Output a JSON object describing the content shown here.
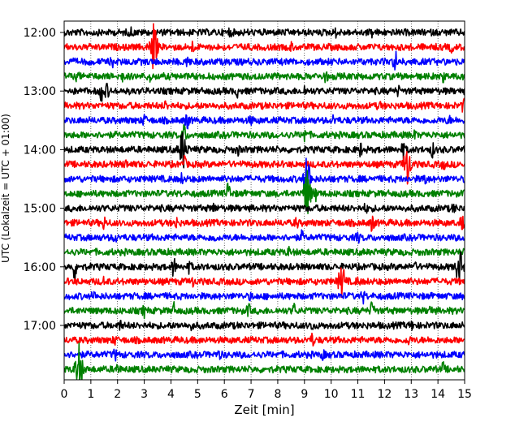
{
  "chart_data": {
    "type": "line",
    "xlabel": "Zeit  [min]",
    "ylabel": "UTC (Lokalzeit = UTC + 01:00)",
    "xlim": [
      0,
      15
    ],
    "x_ticks": [
      "0",
      "1",
      "2",
      "3",
      "4",
      "5",
      "6",
      "7",
      "8",
      "9",
      "10",
      "11",
      "12",
      "13",
      "14",
      "15"
    ],
    "y_ticks": [
      "12:00",
      "13:00",
      "14:00",
      "15:00",
      "16:00",
      "17:00"
    ],
    "grid": "vertical dotted at each minute",
    "trace_colors": [
      "#000000",
      "#ff0000",
      "#0000ff",
      "#008000"
    ],
    "traces": [
      {
        "time": "12:00",
        "color": "#000000",
        "events": [
          [
            2.5,
            0.4
          ],
          [
            6.2,
            0.4
          ],
          [
            10.2,
            0.4
          ],
          [
            11.5,
            0.35
          ]
        ]
      },
      {
        "time": "12:15",
        "color": "#ff0000",
        "events": [
          [
            3.35,
            2.6
          ],
          [
            4.8,
            0.5
          ],
          [
            8.5,
            0.35
          ],
          [
            14.5,
            0.4
          ]
        ]
      },
      {
        "time": "12:30",
        "color": "#0000ff",
        "events": [
          [
            1.8,
            0.4
          ],
          [
            4.6,
            0.5
          ],
          [
            12.4,
            1.3
          ],
          [
            13.0,
            0.35
          ]
        ]
      },
      {
        "time": "12:45",
        "color": "#008000",
        "events": [
          [
            0.5,
            0.4
          ],
          [
            2.2,
            0.4
          ],
          [
            3.2,
            0.5
          ],
          [
            9.8,
            0.6
          ],
          [
            14.2,
            0.4
          ]
        ]
      },
      {
        "time": "13:00",
        "color": "#000000",
        "events": [
          [
            1.4,
            1.4
          ],
          [
            1.6,
            0.8
          ],
          [
            6.5,
            0.5
          ],
          [
            9.0,
            0.5
          ],
          [
            12.5,
            0.4
          ]
        ]
      },
      {
        "time": "13:15",
        "color": "#ff0000",
        "events": [
          [
            3.8,
            0.4
          ],
          [
            11.8,
            0.4
          ],
          [
            14.95,
            0.6
          ]
        ]
      },
      {
        "time": "13:30",
        "color": "#0000ff",
        "events": [
          [
            3.0,
            0.6
          ],
          [
            4.6,
            1.1
          ],
          [
            7.0,
            0.4
          ],
          [
            10.1,
            0.5
          ],
          [
            14.4,
            0.4
          ]
        ]
      },
      {
        "time": "13:45",
        "color": "#008000",
        "events": [
          [
            4.5,
            1.2
          ],
          [
            9.0,
            0.8
          ],
          [
            13.1,
            0.4
          ]
        ]
      },
      {
        "time": "14:00",
        "color": "#000000",
        "events": [
          [
            4.45,
            2.2
          ],
          [
            6.5,
            0.5
          ],
          [
            11.1,
            0.6
          ],
          [
            12.7,
            0.9
          ],
          [
            13.8,
            0.7
          ]
        ]
      },
      {
        "time": "14:15",
        "color": "#ff0000",
        "events": [
          [
            2.3,
            0.4
          ],
          [
            4.5,
            0.7
          ],
          [
            12.85,
            2.2
          ],
          [
            14.2,
            0.4
          ]
        ]
      },
      {
        "time": "14:30",
        "color": "#0000ff",
        "events": [
          [
            4.4,
            0.4
          ],
          [
            9.1,
            2.4
          ],
          [
            13.5,
            0.5
          ]
        ]
      },
      {
        "time": "14:45",
        "color": "#008000",
        "events": [
          [
            6.15,
            1.4
          ],
          [
            9.1,
            2.6
          ],
          [
            9.4,
            0.8
          ]
        ]
      },
      {
        "time": "15:00",
        "color": "#000000",
        "events": [
          [
            5.6,
            0.4
          ],
          [
            11.3,
            0.4
          ],
          [
            14.6,
            0.4
          ]
        ]
      },
      {
        "time": "15:15",
        "color": "#ff0000",
        "events": [
          [
            1.5,
            0.6
          ],
          [
            4.2,
            0.5
          ],
          [
            8.7,
            0.5
          ],
          [
            11.55,
            1.0
          ],
          [
            14.9,
            0.8
          ]
        ]
      },
      {
        "time": "15:30",
        "color": "#0000ff",
        "events": [
          [
            1.9,
            0.5
          ],
          [
            5.6,
            0.6
          ],
          [
            8.9,
            0.5
          ],
          [
            11.0,
            0.5
          ]
        ]
      },
      {
        "time": "15:45",
        "color": "#008000",
        "events": [
          [
            3.7,
            0.4
          ],
          [
            8.4,
            0.4
          ]
        ]
      },
      {
        "time": "16:00",
        "color": "#000000",
        "events": [
          [
            0.4,
            1.4
          ],
          [
            4.1,
            1.1
          ],
          [
            4.7,
            0.6
          ],
          [
            13.1,
            0.6
          ],
          [
            14.8,
            1.7
          ]
        ]
      },
      {
        "time": "16:15",
        "color": "#ff0000",
        "events": [
          [
            1.5,
            0.4
          ],
          [
            4.8,
            0.4
          ],
          [
            10.4,
            1.7
          ],
          [
            11.0,
            0.4
          ]
        ]
      },
      {
        "time": "16:30",
        "color": "#0000ff",
        "events": [
          [
            1.1,
            0.4
          ],
          [
            7.0,
            0.3
          ],
          [
            11.2,
            0.6
          ]
        ]
      },
      {
        "time": "16:45",
        "color": "#008000",
        "events": [
          [
            3.0,
            0.6
          ],
          [
            4.1,
            0.7
          ],
          [
            6.9,
            0.6
          ],
          [
            8.6,
            0.7
          ],
          [
            11.55,
            1.4
          ],
          [
            13.7,
            0.6
          ]
        ]
      },
      {
        "time": "17:00",
        "color": "#000000",
        "events": [
          [
            2.1,
            0.4
          ],
          [
            4.8,
            0.4
          ],
          [
            9.3,
            0.4
          ],
          [
            13.0,
            0.4
          ]
        ]
      },
      {
        "time": "17:15",
        "color": "#ff0000",
        "events": [
          [
            1.9,
            0.4
          ],
          [
            9.3,
            0.6
          ],
          [
            12.9,
            0.4
          ]
        ]
      },
      {
        "time": "17:30",
        "color": "#0000ff",
        "events": [
          [
            1.9,
            0.5
          ],
          [
            5.8,
            0.4
          ],
          [
            9.7,
            0.4
          ]
        ]
      },
      {
        "time": "17:45",
        "color": "#008000",
        "events": [
          [
            0.55,
            2.8
          ],
          [
            2.0,
            0.6
          ],
          [
            14.2,
            0.6
          ]
        ]
      }
    ]
  }
}
